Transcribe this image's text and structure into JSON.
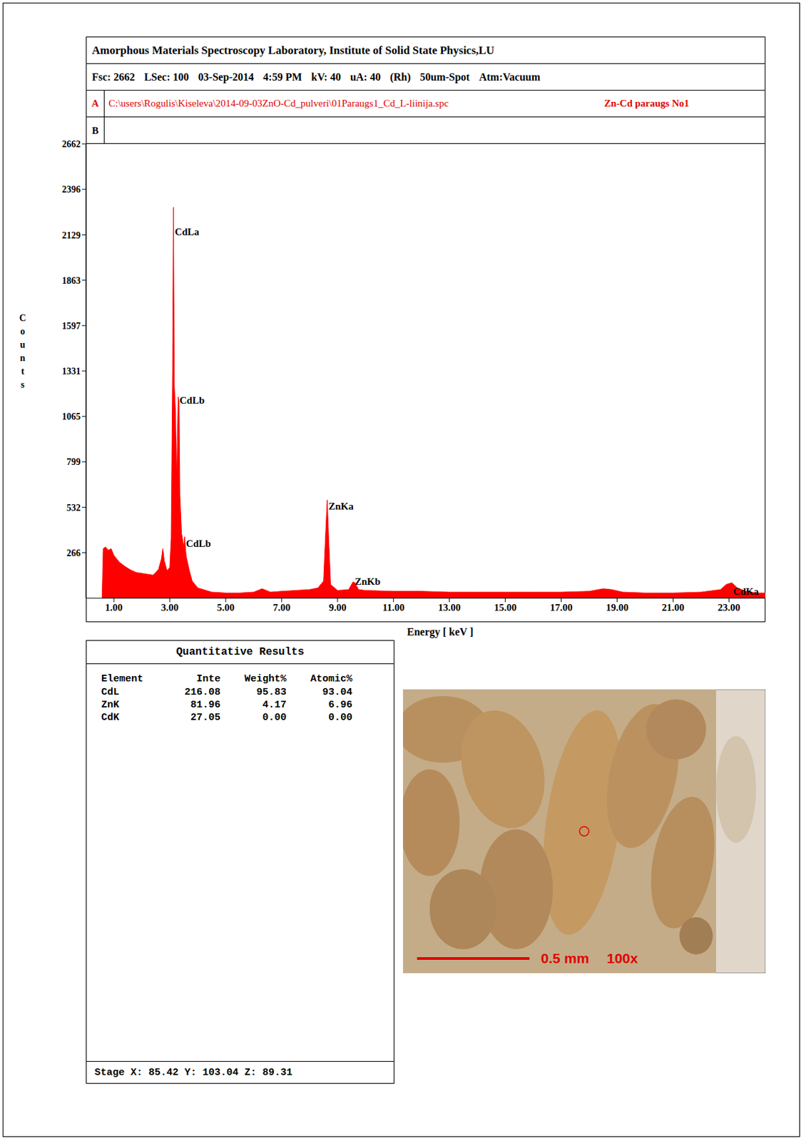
{
  "header": {
    "title": "Amorphous Materials Spectroscopy Laboratory, Institute of Solid State Physics,LU",
    "info": [
      "Fsc: 2662",
      "LSec: 100",
      "03-Sep-2014",
      "4:59 PM",
      "kV: 40",
      "uA: 40",
      "(Rh)",
      "50um-Spot",
      "Atm:Vacuum"
    ],
    "row_a": {
      "letter": "A",
      "path": "C:\\users\\Rogulis\\Kiseleva\\2014-09-03ZnO-Cd_pulveri\\01Paraugs1_Cd_L-liinija.spc",
      "label": "Zn-Cd paraugs No1"
    },
    "row_b": {
      "letter": "B"
    }
  },
  "chart_data": {
    "type": "area",
    "x_label": "Energy [ keV ]",
    "y_label": "Counts",
    "color": "#ff0000",
    "x": [
      0.58,
      0.62,
      0.7,
      0.8,
      0.9,
      1.0,
      1.2,
      1.4,
      1.6,
      1.8,
      2.0,
      2.2,
      2.4,
      2.5,
      2.6,
      2.7,
      2.75,
      2.8,
      2.9,
      3.0,
      3.05,
      3.1,
      3.13,
      3.16,
      3.2,
      3.25,
      3.3,
      3.33,
      3.36,
      3.42,
      3.5,
      3.53,
      3.58,
      3.7,
      3.8,
      4.0,
      4.5,
      5.0,
      5.5,
      6.0,
      6.3,
      6.6,
      7.0,
      7.5,
      8.0,
      8.3,
      8.5,
      8.58,
      8.63,
      8.68,
      8.75,
      9.0,
      9.4,
      9.55,
      9.62,
      9.75,
      10.0,
      11.0,
      12.0,
      13.0,
      14.0,
      15.0,
      16.0,
      17.0,
      18.0,
      18.5,
      18.8,
      19.2,
      20.0,
      21.0,
      22.0,
      22.7,
      22.9,
      23.1,
      23.3,
      23.6,
      24.0,
      24.3
    ],
    "values": [
      0,
      290,
      300,
      280,
      290,
      250,
      210,
      185,
      165,
      150,
      145,
      140,
      135,
      150,
      170,
      230,
      290,
      220,
      160,
      180,
      350,
      1300,
      2290,
      1250,
      1100,
      700,
      1180,
      1150,
      600,
      380,
      300,
      360,
      250,
      160,
      100,
      60,
      35,
      30,
      30,
      35,
      55,
      35,
      40,
      45,
      50,
      60,
      100,
      400,
      575,
      350,
      80,
      45,
      50,
      95,
      90,
      50,
      45,
      40,
      40,
      35,
      35,
      35,
      35,
      35,
      40,
      55,
      50,
      35,
      30,
      30,
      35,
      50,
      80,
      90,
      60,
      40,
      30,
      30
    ],
    "xlim": [
      0,
      24.3
    ],
    "xticks": [
      {
        "value": 1,
        "label": "1.00"
      },
      {
        "value": 3,
        "label": "3.00"
      },
      {
        "value": 5,
        "label": "5.00"
      },
      {
        "value": 7,
        "label": "7.00"
      },
      {
        "value": 9,
        "label": "9.00"
      },
      {
        "value": 11,
        "label": "11.00"
      },
      {
        "value": 13,
        "label": "13.00"
      },
      {
        "value": 15,
        "label": "15.00"
      },
      {
        "value": 17,
        "label": "17.00"
      },
      {
        "value": 19,
        "label": "19.00"
      },
      {
        "value": 21,
        "label": "21.00"
      },
      {
        "value": 23,
        "label": "23.00"
      }
    ],
    "ylim": [
      0,
      2662
    ],
    "yticks": [
      266,
      532,
      799,
      1065,
      1331,
      1597,
      1863,
      2129,
      2396,
      2662
    ],
    "annotations": [
      {
        "text": "CdLa",
        "x": 3.13,
        "y": 2148
      },
      {
        "text": "CdLb",
        "x": 3.3,
        "y": 1160
      },
      {
        "text": "CdLb",
        "x": 3.53,
        "y": 320
      },
      {
        "text": "ZnKa",
        "x": 8.63,
        "y": 540
      },
      {
        "text": "ZnKb",
        "x": 9.57,
        "y": 100
      },
      {
        "text": "CdKa",
        "x": 23.1,
        "y": 40
      }
    ]
  },
  "results": {
    "title": "Quantitative Results",
    "columns": [
      "Element",
      "Inte",
      "Weight%",
      "Atomic%"
    ],
    "rows": [
      [
        "CdL",
        "216.08",
        "95.83",
        "93.04"
      ],
      [
        "ZnK",
        "81.96",
        "4.17",
        "6.96"
      ],
      [
        "CdK",
        "27.05",
        "0.00",
        "0.00"
      ]
    ]
  },
  "stage": "Stage X: 85.42 Y: 103.04 Z: 89.31",
  "image": {
    "scale_bar": "0.5 mm",
    "magnification": "100x"
  }
}
